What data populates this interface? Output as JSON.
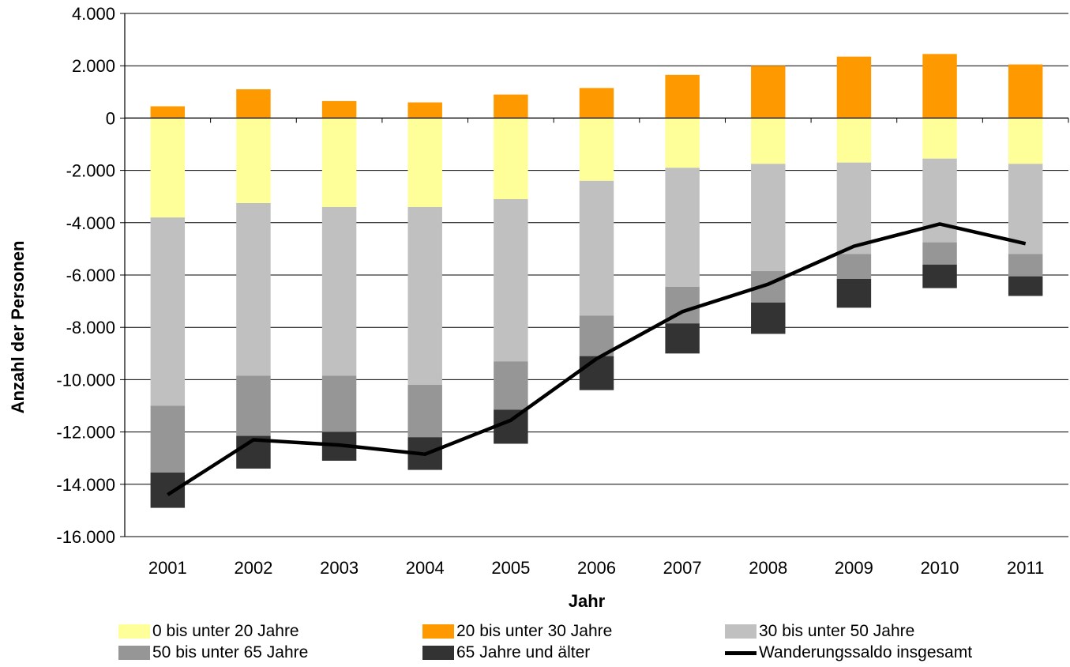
{
  "chart_data": {
    "type": "bar",
    "stacked": true,
    "title": "",
    "xlabel": "Jahr",
    "ylabel": "Anzahl der Personen",
    "ylim": [
      -16000,
      4000
    ],
    "yticks": [
      4000,
      2000,
      0,
      -2000,
      -4000,
      -6000,
      -8000,
      -10000,
      -12000,
      -14000,
      -16000
    ],
    "ytick_labels": [
      "4.000",
      "2.000",
      "0",
      "-2.000",
      "-4.000",
      "-6.000",
      "-8.000",
      "-10.000",
      "-12.000",
      "-14.000",
      "-16.000"
    ],
    "grid": true,
    "legend_position": "bottom",
    "categories": [
      "2001",
      "2002",
      "2003",
      "2004",
      "2005",
      "2006",
      "2007",
      "2008",
      "2009",
      "2010",
      "2011"
    ],
    "series": [
      {
        "name": "0 bis unter 20 Jahre",
        "color": "#FFFF99",
        "kind": "bar",
        "values": [
          -3800,
          -3250,
          -3400,
          -3400,
          -3100,
          -2400,
          -1900,
          -1750,
          -1700,
          -1550,
          -1750
        ]
      },
      {
        "name": "20 bis unter 30 Jahre",
        "color": "#FF9900",
        "kind": "bar",
        "values": [
          450,
          1100,
          650,
          600,
          900,
          1150,
          1650,
          2000,
          2350,
          2450,
          2050
        ]
      },
      {
        "name": "30 bis unter 50 Jahre",
        "color": "#C0C0C0",
        "kind": "bar",
        "values": [
          -7200,
          -6600,
          -6450,
          -6800,
          -6200,
          -5150,
          -4550,
          -4100,
          -3500,
          -3200,
          -3450
        ]
      },
      {
        "name": "50 bis unter 65 Jahre",
        "color": "#969696",
        "kind": "bar",
        "values": [
          -2550,
          -2300,
          -2150,
          -2000,
          -1850,
          -1550,
          -1400,
          -1200,
          -950,
          -850,
          -850
        ]
      },
      {
        "name": "65 Jahre und älter",
        "color": "#333333",
        "kind": "bar",
        "values": [
          -1350,
          -1250,
          -1100,
          -1250,
          -1300,
          -1300,
          -1150,
          -1200,
          -1100,
          -900,
          -750
        ]
      },
      {
        "name": "Wanderungssaldo insgesamt",
        "color": "#000000",
        "kind": "line",
        "values": [
          -14400,
          -12300,
          -12500,
          -12850,
          -11550,
          -9200,
          -7400,
          -6350,
          -4900,
          -4050,
          -4800
        ]
      }
    ]
  }
}
